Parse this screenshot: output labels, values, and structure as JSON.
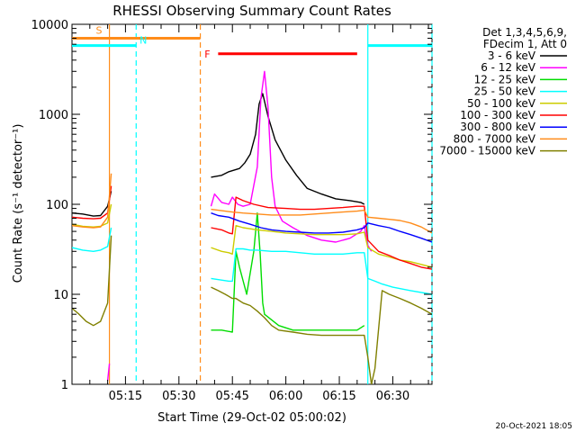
{
  "chart_data": {
    "type": "line",
    "title": "RHESSI Observing Summary Count Rates",
    "xlabel": "Start Time (29-Oct-02 05:00:02)",
    "ylabel": "Count Rate (s⁻¹ detector⁻¹)",
    "y_scale": "log",
    "ylim": [
      1,
      10000
    ],
    "xlim_minutes": [
      0,
      101
    ],
    "yticks": [
      "1",
      "10",
      "100",
      "1000",
      "10000"
    ],
    "xticks": [
      {
        "label": "05:15",
        "minute": 15
      },
      {
        "label": "05:30",
        "minute": 30
      },
      {
        "label": "05:45",
        "minute": 45
      },
      {
        "label": "06:00",
        "minute": 60
      },
      {
        "label": "06:15",
        "minute": 75
      },
      {
        "label": "06:30",
        "minute": 90
      }
    ],
    "legend_header": [
      "Det 1,3,4,5,6,9,",
      "FDecim 1, Att 0"
    ],
    "legend_position": "right",
    "timestamp": "20-Oct-2021 18:05",
    "flags": [
      {
        "label": "S",
        "start": 0,
        "end": 36,
        "level": 7000,
        "color": "#ff8c1a"
      },
      {
        "label": "N",
        "start": 0,
        "end": 18,
        "level": 5800,
        "color": "#00ffff"
      },
      {
        "label": "N",
        "start": 83,
        "end": 101,
        "level": 5800,
        "color": "#00ffff"
      },
      {
        "label": "F",
        "start": 41,
        "end": 80,
        "level": 4700,
        "color": "#ff0000"
      }
    ],
    "vlines": [
      {
        "minute": 10.5,
        "color": "#ff8c1a",
        "dash": false
      },
      {
        "minute": 18,
        "color": "#00ffff",
        "dash": true
      },
      {
        "minute": 36,
        "color": "#ff8c1a",
        "dash": true
      },
      {
        "minute": 83,
        "color": "#00ffff",
        "dash": false
      },
      {
        "minute": 101,
        "color": "#00ffff",
        "dash": true
      }
    ],
    "series": [
      {
        "name": "3 - 6 keV",
        "color": "#000000",
        "points": [
          [
            0,
            80
          ],
          [
            3,
            78
          ],
          [
            6,
            74
          ],
          [
            8,
            75
          ],
          [
            10,
            95
          ],
          [
            11,
            140
          ],
          [
            39,
            200
          ],
          [
            42,
            210
          ],
          [
            44,
            230
          ],
          [
            47,
            250
          ],
          [
            48.5,
            290
          ],
          [
            50,
            360
          ],
          [
            51.5,
            600
          ],
          [
            52.5,
            1300
          ],
          [
            53.5,
            1700
          ],
          [
            55,
            950
          ],
          [
            57,
            520
          ],
          [
            60,
            310
          ],
          [
            63,
            210
          ],
          [
            66,
            150
          ],
          [
            70,
            130
          ],
          [
            74,
            115
          ],
          [
            78,
            110
          ],
          [
            81,
            105
          ],
          [
            82,
            100
          ]
        ]
      },
      {
        "name": "6 - 12 keV",
        "color": "#ff00ff",
        "points": [
          [
            10,
            1.1
          ],
          [
            10.5,
            1.7
          ],
          [
            39,
            95
          ],
          [
            40,
            130
          ],
          [
            42,
            105
          ],
          [
            44,
            100
          ],
          [
            45,
            120
          ],
          [
            46.5,
            100
          ],
          [
            48,
            95
          ],
          [
            50,
            100
          ],
          [
            52,
            260
          ],
          [
            53,
            1500
          ],
          [
            54,
            3000
          ],
          [
            55,
            1200
          ],
          [
            56,
            200
          ],
          [
            57,
            95
          ],
          [
            59,
            65
          ],
          [
            62,
            55
          ],
          [
            66,
            45
          ],
          [
            70,
            40
          ],
          [
            74,
            38
          ],
          [
            78,
            42
          ],
          [
            81,
            50
          ],
          [
            82,
            58
          ],
          [
            83,
            35
          ],
          [
            84,
            30
          ]
        ]
      },
      {
        "name": "12 - 25 keV",
        "color": "#00dd00",
        "points": [
          [
            39,
            4
          ],
          [
            42,
            4
          ],
          [
            45,
            3.8
          ],
          [
            46,
            30
          ],
          [
            47,
            20
          ],
          [
            49,
            10
          ],
          [
            51,
            30
          ],
          [
            52,
            80
          ],
          [
            52.8,
            28
          ],
          [
            53.5,
            8
          ],
          [
            54,
            6
          ],
          [
            58,
            4.5
          ],
          [
            62,
            4
          ],
          [
            66,
            4
          ],
          [
            70,
            4
          ],
          [
            75,
            4
          ],
          [
            80,
            4
          ],
          [
            82,
            4.5
          ]
        ]
      },
      {
        "name": "25 - 50 keV",
        "color": "#00ffff",
        "points": [
          [
            0,
            33
          ],
          [
            3,
            31
          ],
          [
            6,
            30
          ],
          [
            8,
            31
          ],
          [
            10,
            34
          ],
          [
            11,
            55
          ],
          [
            39,
            15
          ],
          [
            44,
            14
          ],
          [
            45,
            14
          ],
          [
            46,
            32
          ],
          [
            48,
            32
          ],
          [
            50,
            31
          ],
          [
            52,
            31
          ],
          [
            56,
            30
          ],
          [
            60,
            30
          ],
          [
            64,
            29
          ],
          [
            68,
            28
          ],
          [
            72,
            28
          ],
          [
            76,
            28
          ],
          [
            80,
            29
          ],
          [
            82,
            29
          ],
          [
            83,
            15
          ],
          [
            85,
            14
          ],
          [
            87,
            13
          ],
          [
            90,
            12
          ],
          [
            95,
            11
          ],
          [
            101,
            10
          ]
        ]
      },
      {
        "name": "50 - 100 keV",
        "color": "#cccc00",
        "points": [
          [
            0,
            60
          ],
          [
            3,
            57
          ],
          [
            6,
            56
          ],
          [
            8,
            57
          ],
          [
            10,
            62
          ],
          [
            11,
            100
          ],
          [
            39,
            33
          ],
          [
            42,
            30
          ],
          [
            44,
            29
          ],
          [
            45,
            28
          ],
          [
            46,
            58
          ],
          [
            48,
            55
          ],
          [
            52,
            52
          ],
          [
            56,
            50
          ],
          [
            60,
            48
          ],
          [
            64,
            47
          ],
          [
            68,
            46
          ],
          [
            72,
            46
          ],
          [
            76,
            46
          ],
          [
            80,
            47
          ],
          [
            82,
            49
          ],
          [
            83,
            33
          ],
          [
            86,
            28
          ],
          [
            89,
            26
          ],
          [
            92,
            24
          ],
          [
            95,
            23
          ],
          [
            101,
            20
          ]
        ]
      },
      {
        "name": "100 - 300 keV",
        "color": "#ff0000",
        "points": [
          [
            0,
            72
          ],
          [
            3,
            70
          ],
          [
            6,
            69
          ],
          [
            8,
            70
          ],
          [
            10,
            80
          ],
          [
            11,
            160
          ],
          [
            39,
            55
          ],
          [
            42,
            52
          ],
          [
            44,
            48
          ],
          [
            45,
            47
          ],
          [
            46,
            120
          ],
          [
            48,
            110
          ],
          [
            51,
            100
          ],
          [
            55,
            92
          ],
          [
            60,
            90
          ],
          [
            64,
            88
          ],
          [
            68,
            88
          ],
          [
            72,
            90
          ],
          [
            76,
            92
          ],
          [
            80,
            95
          ],
          [
            82,
            95
          ],
          [
            83,
            40
          ],
          [
            86,
            30
          ],
          [
            89,
            27
          ],
          [
            92,
            24
          ],
          [
            95,
            22
          ],
          [
            98,
            20
          ],
          [
            101,
            19
          ]
        ]
      },
      {
        "name": "300 - 800 keV",
        "color": "#0000ff",
        "points": [
          [
            39,
            80
          ],
          [
            41,
            75
          ],
          [
            44,
            72
          ],
          [
            47,
            65
          ],
          [
            50,
            60
          ],
          [
            53,
            55
          ],
          [
            56,
            52
          ],
          [
            60,
            50
          ],
          [
            64,
            49
          ],
          [
            68,
            48
          ],
          [
            72,
            48
          ],
          [
            76,
            49
          ],
          [
            80,
            52
          ],
          [
            82,
            55
          ],
          [
            83,
            62
          ],
          [
            86,
            58
          ],
          [
            89,
            55
          ],
          [
            92,
            50
          ],
          [
            95,
            46
          ],
          [
            98,
            42
          ],
          [
            101,
            38
          ]
        ]
      },
      {
        "name": "800 - 7000 keV",
        "color": "#ff8c1a",
        "points": [
          [
            0,
            58
          ],
          [
            3,
            56
          ],
          [
            6,
            55
          ],
          [
            8,
            56
          ],
          [
            10,
            72
          ],
          [
            11,
            220
          ],
          [
            39,
            88
          ],
          [
            42,
            85
          ],
          [
            45,
            82
          ],
          [
            48,
            80
          ],
          [
            52,
            78
          ],
          [
            56,
            76
          ],
          [
            60,
            76
          ],
          [
            64,
            76
          ],
          [
            68,
            78
          ],
          [
            72,
            80
          ],
          [
            76,
            82
          ],
          [
            80,
            84
          ],
          [
            82,
            86
          ],
          [
            83,
            72
          ],
          [
            86,
            70
          ],
          [
            89,
            68
          ],
          [
            92,
            66
          ],
          [
            95,
            62
          ],
          [
            98,
            56
          ],
          [
            101,
            48
          ]
        ]
      },
      {
        "name": "7000 - 15000 keV",
        "color": "#808000",
        "points": [
          [
            0,
            7
          ],
          [
            2,
            6
          ],
          [
            4,
            5
          ],
          [
            6,
            4.5
          ],
          [
            8,
            5
          ],
          [
            10,
            8
          ],
          [
            11,
            45
          ],
          [
            39,
            12
          ],
          [
            41,
            11
          ],
          [
            43,
            10
          ],
          [
            45,
            9
          ],
          [
            46,
            9
          ],
          [
            48,
            8
          ],
          [
            50,
            7.5
          ],
          [
            52,
            6.5
          ],
          [
            54,
            5.5
          ],
          [
            56,
            4.5
          ],
          [
            58,
            4
          ],
          [
            62,
            3.8
          ],
          [
            66,
            3.6
          ],
          [
            70,
            3.5
          ],
          [
            75,
            3.5
          ],
          [
            80,
            3.5
          ],
          [
            82,
            3.5
          ],
          [
            83,
            2
          ],
          [
            84,
            1
          ],
          [
            85,
            1.5
          ],
          [
            87,
            11
          ],
          [
            89,
            10
          ],
          [
            92,
            9
          ],
          [
            95,
            8
          ],
          [
            98,
            7
          ],
          [
            101,
            6
          ]
        ]
      }
    ]
  }
}
